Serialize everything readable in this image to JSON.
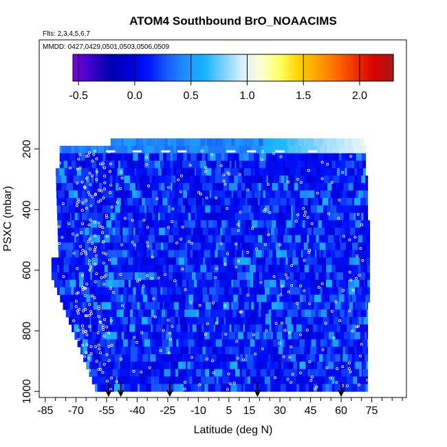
{
  "chart_data": {
    "type": "heatmap",
    "title": "ATOM4 Southbound BrO_NOAACIMS",
    "flights_label": "Flts: 2,3,4,5,6,7",
    "dates_label": "MMDD: 0427,0429,0501,0503,0506,0509",
    "xlabel": "Latitude (deg N)",
    "ylabel": "PSXC (mbar)",
    "xlim": [
      -88,
      92
    ],
    "ylim": [
      1020,
      -160
    ],
    "x_ticks": [
      -85,
      -70,
      -55,
      -40,
      -25,
      -10,
      5,
      15,
      30,
      45,
      60,
      75
    ],
    "x_minor_ticks": [
      -80,
      -75,
      -65,
      -60,
      -50,
      -45,
      -35,
      -30,
      -20,
      -15,
      -5,
      0,
      10,
      20,
      25,
      35,
      40,
      50,
      55,
      65,
      70,
      80,
      85,
      90
    ],
    "y_ticks": [
      200,
      400,
      600,
      800,
      1000
    ],
    "colorbar": {
      "range": [
        -0.55,
        2.3
      ],
      "ticks": [
        -0.5,
        0.0,
        0.5,
        1.0,
        1.5,
        2.0
      ],
      "tick_labels": [
        "-0.5",
        "0.0",
        "0.5",
        "1.0",
        "1.5",
        "2.0"
      ],
      "colors": [
        "#7a00e0",
        "#3d00c8",
        "#0000b0",
        "#0000d8",
        "#0014ff",
        "#1a5cff",
        "#2090ff",
        "#18b4ff",
        "#7cd0ff",
        "#d8f0ff",
        "#ffffd0",
        "#ffff60",
        "#ffd000",
        "#ffa000",
        "#ff6a00",
        "#f03000",
        "#d80000",
        "#a81818"
      ]
    },
    "profile_markers_lat": [
      -54,
      -48,
      -24,
      19,
      60
    ],
    "grid": false,
    "legend": "colorbar-top"
  }
}
